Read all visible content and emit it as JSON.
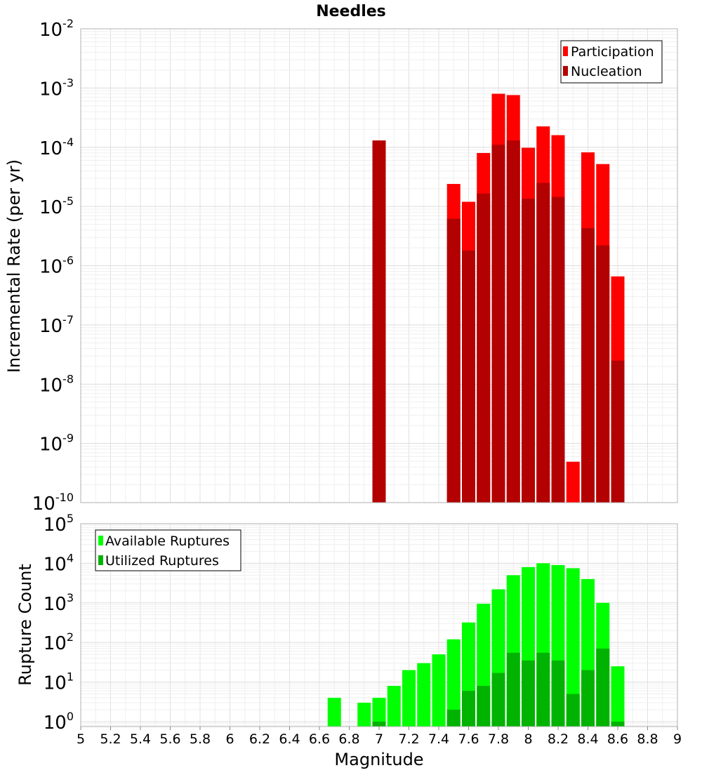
{
  "chart_data": [
    {
      "type": "bar",
      "title": "Needles",
      "xlabel": "",
      "ylabel": "Incremental Rate (per yr)",
      "yscale": "log",
      "ylim": [
        1e-10,
        0.01
      ],
      "xlim": [
        5,
        9
      ],
      "grid": true,
      "legend_position": "top-right",
      "series": [
        {
          "name": "Participation",
          "color": "#ff0000",
          "x": [
            7.0,
            7.5,
            7.6,
            7.7,
            7.8,
            7.9,
            8.0,
            8.1,
            8.2,
            8.3,
            8.4,
            8.5,
            8.6
          ],
          "values": [
            0.00013,
            2.4e-05,
            1.2e-05,
            8e-05,
            0.0008,
            0.00076,
            9.8e-05,
            0.000225,
            0.00016,
            4.9e-10,
            8.2e-05,
            5.2e-05,
            6.6e-07
          ]
        },
        {
          "name": "Nucleation",
          "color": "#b30000",
          "x": [
            7.0,
            7.5,
            7.6,
            7.7,
            7.8,
            7.9,
            8.0,
            8.1,
            8.2,
            8.4,
            8.5,
            8.6
          ],
          "values": [
            0.00013,
            6.2e-06,
            1.8e-06,
            1.65e-05,
            0.00011,
            0.00013,
            1.35e-05,
            2.5e-05,
            1.45e-05,
            4.3e-06,
            2.2e-06,
            2.5e-08
          ]
        }
      ]
    },
    {
      "type": "bar",
      "title": "",
      "xlabel": "Magnitude",
      "ylabel": "Rupture Count",
      "yscale": "log",
      "ylim": [
        0.75,
        100000.0
      ],
      "xlim": [
        5,
        9
      ],
      "grid": true,
      "legend_position": "top-left",
      "series": [
        {
          "name": "Available Ruptures",
          "color": "#00ff00",
          "x": [
            6.7,
            6.9,
            7.0,
            7.1,
            7.2,
            7.3,
            7.4,
            7.5,
            7.6,
            7.7,
            7.8,
            7.9,
            8.0,
            8.1,
            8.2,
            8.3,
            8.4,
            8.5,
            8.6
          ],
          "values": [
            4,
            3,
            4,
            8,
            20,
            30,
            50,
            120,
            320,
            950,
            2200,
            5000,
            8000,
            10000,
            9000,
            7500,
            4000,
            1000,
            25
          ]
        },
        {
          "name": "Utilized Ruptures",
          "color": "#00b300",
          "x": [
            7.0,
            7.5,
            7.6,
            7.7,
            7.8,
            7.9,
            8.0,
            8.1,
            8.2,
            8.3,
            8.4,
            8.5,
            8.6
          ],
          "values": [
            1,
            2,
            6,
            8,
            17,
            55,
            35,
            55,
            35,
            5,
            20,
            70,
            1
          ]
        }
      ]
    }
  ],
  "x_ticks": [
    "5",
    "5.2",
    "5.4",
    "5.6",
    "5.8",
    "6",
    "6.2",
    "6.4",
    "6.6",
    "6.8",
    "7",
    "7.2",
    "7.4",
    "7.6",
    "7.8",
    "8",
    "8.2",
    "8.4",
    "8.6",
    "8.8",
    "9"
  ],
  "x_tick_values": [
    5,
    5.2,
    5.4,
    5.6,
    5.8,
    6,
    6.2,
    6.4,
    6.6,
    6.8,
    7,
    7.2,
    7.4,
    7.6,
    7.8,
    8,
    8.2,
    8.4,
    8.6,
    8.8,
    9
  ],
  "top_y_ticks": [
    {
      "base": "10",
      "exp": "-2",
      "value": 0.01
    },
    {
      "base": "10",
      "exp": "-3",
      "value": 0.001
    },
    {
      "base": "10",
      "exp": "-4",
      "value": 0.0001
    },
    {
      "base": "10",
      "exp": "-5",
      "value": 1e-05
    },
    {
      "base": "10",
      "exp": "-6",
      "value": 1e-06
    },
    {
      "base": "10",
      "exp": "-7",
      "value": 1e-07
    },
    {
      "base": "10",
      "exp": "-8",
      "value": 1e-08
    },
    {
      "base": "10",
      "exp": "-9",
      "value": 1e-09
    },
    {
      "base": "10",
      "exp": "-10",
      "value": 1e-10
    }
  ],
  "bottom_y_ticks": [
    {
      "base": "10",
      "exp": "5",
      "value": 100000.0
    },
    {
      "base": "10",
      "exp": "4",
      "value": 10000.0
    },
    {
      "base": "10",
      "exp": "3",
      "value": 1000.0
    },
    {
      "base": "10",
      "exp": "2",
      "value": 100.0
    },
    {
      "base": "10",
      "exp": "1",
      "value": 10.0
    },
    {
      "base": "10",
      "exp": "0",
      "value": 1
    }
  ]
}
